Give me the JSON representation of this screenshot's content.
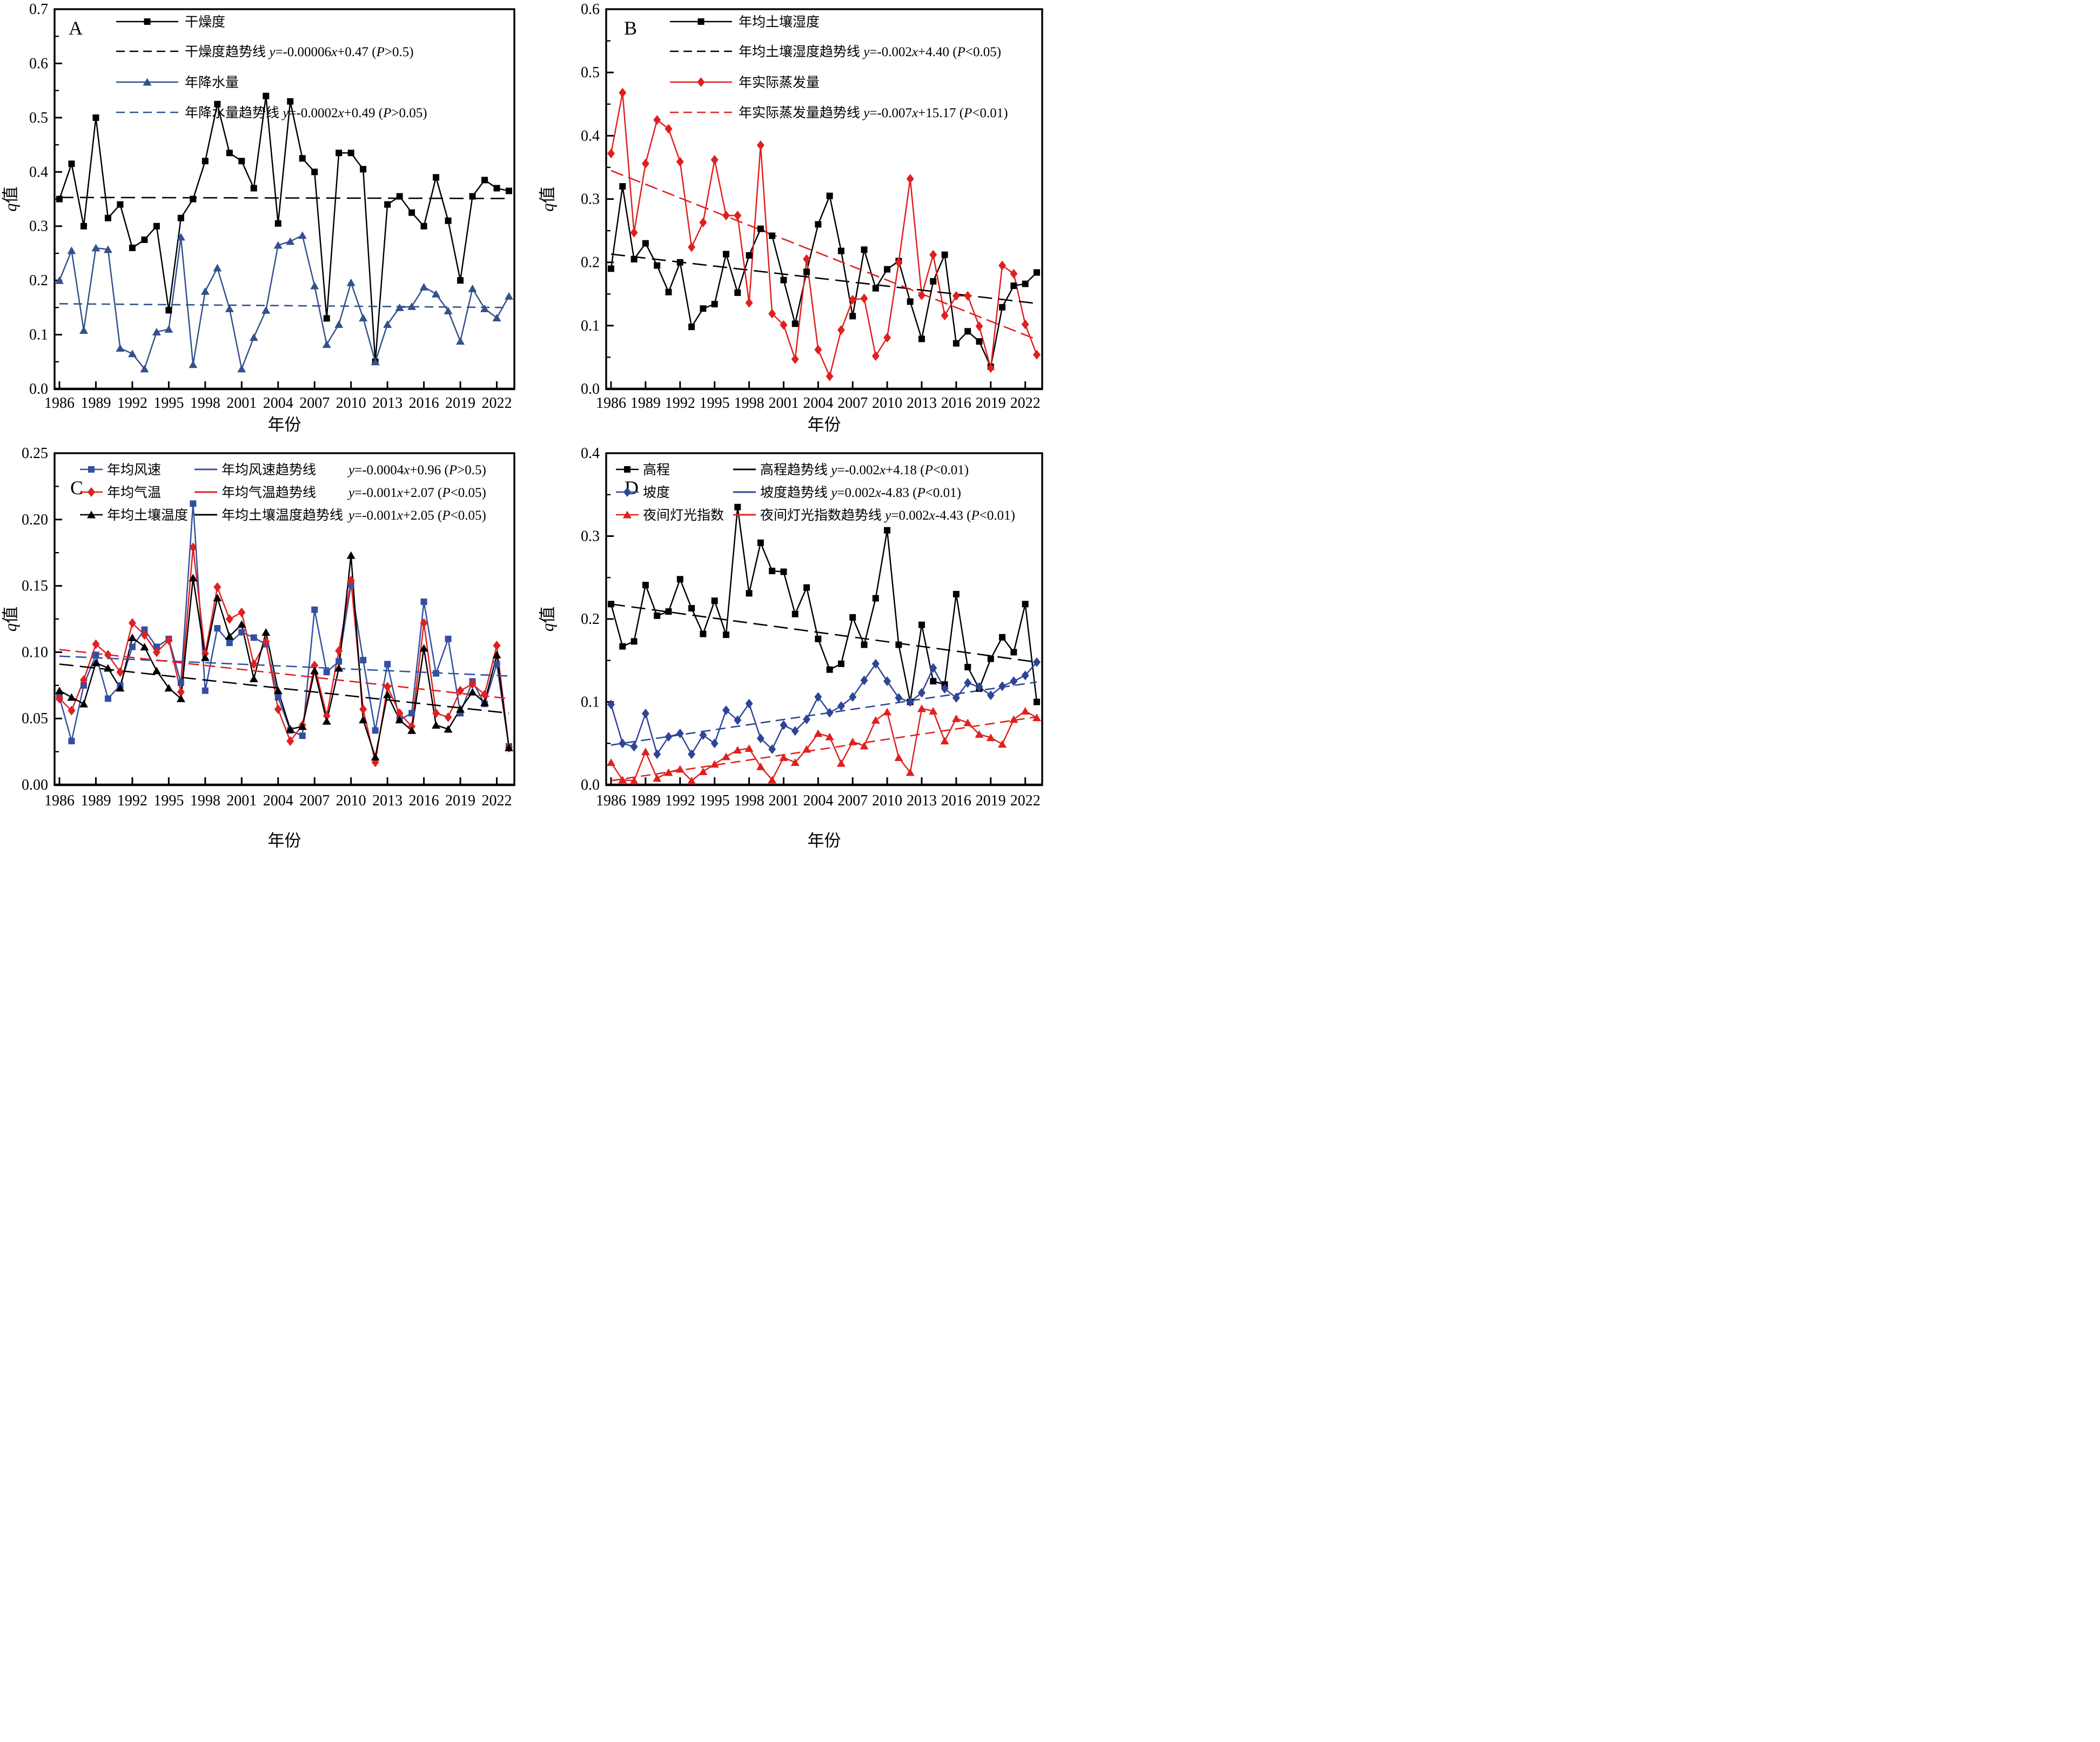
{
  "page": {
    "background": "#ffffff"
  },
  "chart_data": {
    "type": "line",
    "x_years": [
      1986,
      1987,
      1988,
      1989,
      1990,
      1991,
      1992,
      1993,
      1994,
      1995,
      1996,
      1997,
      1998,
      1999,
      2000,
      2001,
      2002,
      2003,
      2004,
      2005,
      2006,
      2007,
      2008,
      2009,
      2010,
      2011,
      2012,
      2013,
      2014,
      2015,
      2016,
      2017,
      2018,
      2019,
      2020,
      2021,
      2022,
      2023
    ],
    "xticks": [
      1986,
      1989,
      1992,
      1995,
      1998,
      2001,
      2004,
      2007,
      2010,
      2013,
      2016,
      2019,
      2022
    ],
    "xlabel": "年份",
    "ylabel_italic": "q",
    "ylabel_rest": "值",
    "grid": false,
    "panels": [
      {
        "letter": "A",
        "ylim": [
          0,
          0.7
        ],
        "ytick_step": 0.1,
        "y_decimals": 1,
        "series": [
          {
            "key": "dryness",
            "name": "干燥度",
            "color": "#000000",
            "marker": "square",
            "values": [
              0.35,
              0.415,
              0.3,
              0.5,
              0.315,
              0.34,
              0.26,
              0.275,
              0.3,
              0.145,
              0.315,
              0.35,
              0.42,
              0.525,
              0.435,
              0.42,
              0.37,
              0.54,
              0.305,
              0.53,
              0.425,
              0.4,
              0.13,
              0.435,
              0.435,
              0.405,
              0.05,
              0.34,
              0.355,
              0.325,
              0.3,
              0.39,
              0.31,
              0.2,
              0.355,
              0.385,
              0.37,
              0.365
            ]
          },
          {
            "key": "precipitation",
            "name": "年降水量",
            "color": "#33518d",
            "marker": "triangle",
            "values": [
              0.2,
              0.255,
              0.108,
              0.26,
              0.257,
              0.075,
              0.065,
              0.037,
              0.105,
              0.11,
              0.28,
              0.045,
              0.18,
              0.223,
              0.148,
              0.037,
              0.095,
              0.145,
              0.265,
              0.272,
              0.283,
              0.19,
              0.082,
              0.119,
              0.196,
              0.131,
              0.05,
              0.119,
              0.15,
              0.152,
              0.188,
              0.175,
              0.144,
              0.088,
              0.185,
              0.148,
              0.131,
              0.171
            ]
          }
        ],
        "trends": [
          {
            "key": "dryness-trend",
            "name": "干燥度趋势线",
            "eq": "y=-0.00006x+0.47 (P>0.5)",
            "color": "#000000",
            "start": 0.353,
            "end": 0.351,
            "dash": "26,12"
          },
          {
            "key": "precipitation-trend",
            "name": "年降水量趋势线",
            "eq": "y=-0.0002x+0.49 (P>0.05)",
            "color": "#33518d",
            "start": 0.157,
            "end": 0.15,
            "dash": "16,10"
          }
        ],
        "legend": {
          "type": "stack",
          "key_x": 215,
          "key_w": 115,
          "text_x": 342,
          "rows_y": [
            40,
            95,
            152,
            208
          ]
        }
      },
      {
        "letter": "B",
        "ylim": [
          0,
          0.6
        ],
        "ytick_step": 0.1,
        "y_decimals": 1,
        "series": [
          {
            "key": "soil-moisture",
            "name": "年均土壤湿度",
            "color": "#000000",
            "marker": "square",
            "values": [
              0.19,
              0.32,
              0.205,
              0.23,
              0.195,
              0.153,
              0.2,
              0.098,
              0.127,
              0.134,
              0.213,
              0.152,
              0.211,
              0.253,
              0.242,
              0.172,
              0.103,
              0.185,
              0.26,
              0.305,
              0.218,
              0.115,
              0.22,
              0.159,
              0.189,
              0.202,
              0.138,
              0.079,
              0.17,
              0.212,
              0.072,
              0.091,
              0.075,
              0.035,
              0.129,
              0.163,
              0.166,
              0.184
            ]
          },
          {
            "key": "evaporation",
            "name": "年实际蒸发量",
            "color": "#e02020",
            "marker": "diamond",
            "values": [
              0.372,
              0.468,
              0.247,
              0.356,
              0.425,
              0.411,
              0.359,
              0.224,
              0.263,
              0.362,
              0.274,
              0.274,
              0.136,
              0.385,
              0.119,
              0.101,
              0.047,
              0.205,
              0.062,
              0.02,
              0.093,
              0.141,
              0.143,
              0.052,
              0.081,
              0.2,
              0.332,
              0.148,
              0.212,
              0.116,
              0.147,
              0.147,
              0.099,
              0.033,
              0.195,
              0.182,
              0.102,
              0.054
            ]
          }
        ],
        "trends": [
          {
            "key": "soil-moisture-trend",
            "name": "年均土壤湿度趋势线",
            "eq": "y=-0.002x+4.40 (P<0.05)",
            "color": "#000000",
            "start": 0.213,
            "end": 0.135,
            "dash": "26,12"
          },
          {
            "key": "evaporation-trend",
            "name": "年实际蒸发量趋势线",
            "eq": "y=-0.007x+15.17 (P<0.01)",
            "color": "#e02020",
            "start": 0.345,
            "end": 0.078,
            "dash": "24,10"
          }
        ],
        "legend": {
          "type": "stack",
          "key_x": 268,
          "key_w": 115,
          "text_x": 395,
          "rows_y": [
            40,
            95,
            152,
            208
          ]
        }
      },
      {
        "letter": "C",
        "ylim": [
          0,
          0.25
        ],
        "ytick_step": 0.05,
        "y_decimals": 2,
        "series": [
          {
            "key": "wind-speed",
            "name": "年均风速",
            "color": "#3350a0",
            "marker": "square",
            "values": [
              0.066,
              0.033,
              0.075,
              0.098,
              0.065,
              0.075,
              0.104,
              0.117,
              0.104,
              0.11,
              0.077,
              0.212,
              0.071,
              0.118,
              0.107,
              0.115,
              0.111,
              0.106,
              0.066,
              0.041,
              0.037,
              0.132,
              0.085,
              0.093,
              0.151,
              0.094,
              0.041,
              0.091,
              0.049,
              0.054,
              0.138,
              0.084,
              0.11,
              0.054,
              0.078,
              0.061,
              0.091,
              0.029
            ]
          },
          {
            "key": "air-temperature",
            "name": "年均气温",
            "color": "#e02020",
            "marker": "diamond",
            "values": [
              0.065,
              0.056,
              0.079,
              0.106,
              0.098,
              0.085,
              0.122,
              0.113,
              0.1,
              0.109,
              0.07,
              0.179,
              0.099,
              0.149,
              0.125,
              0.13,
              0.091,
              0.108,
              0.057,
              0.033,
              0.045,
              0.09,
              0.052,
              0.101,
              0.154,
              0.057,
              0.017,
              0.074,
              0.054,
              0.044,
              0.122,
              0.054,
              0.051,
              0.071,
              0.076,
              0.068,
              0.105,
              0.028
            ]
          },
          {
            "key": "soil-temperature",
            "name": "年均土壤温度",
            "color": "#000000",
            "marker": "triangle",
            "values": [
              0.071,
              0.066,
              0.061,
              0.092,
              0.088,
              0.073,
              0.111,
              0.104,
              0.086,
              0.073,
              0.065,
              0.156,
              0.096,
              0.141,
              0.112,
              0.121,
              0.08,
              0.115,
              0.071,
              0.042,
              0.044,
              0.086,
              0.048,
              0.088,
              0.173,
              0.049,
              0.021,
              0.068,
              0.049,
              0.041,
              0.103,
              0.045,
              0.042,
              0.057,
              0.07,
              0.062,
              0.098,
              0.028
            ]
          }
        ],
        "trends": [
          {
            "key": "wind-speed-trend",
            "name": "年均风速趋势线",
            "eq": "y=-0.0004x+0.96 (P>0.5)",
            "color": "#3350a0",
            "start": 0.097,
            "end": 0.082,
            "dash": "20,10"
          },
          {
            "key": "air-temperature-trend",
            "name": "年均气温趋势线",
            "eq": "y=-0.001x+2.07 (P<0.05)",
            "color": "#e02020",
            "start": 0.102,
            "end": 0.065,
            "dash": "20,10"
          },
          {
            "key": "soil-temperature-trend",
            "name": "年均土壤温度趋势线",
            "eq": "y=-0.001x+2.05 (P<0.05)",
            "color": "#000000",
            "start": 0.091,
            "end": 0.054,
            "dash": "26,12"
          }
        ],
        "legend": {
          "type": "grid",
          "c1_key_x": 148,
          "c1_key_w": 42,
          "c1_text_x": 198,
          "c2_key_x": 360,
          "c2_key_w": 42,
          "c2_text_x": 410,
          "eq_x": 645,
          "rows_y": [
            62,
            104,
            146
          ]
        }
      },
      {
        "letter": "D",
        "ylim": [
          0,
          0.4
        ],
        "ytick_step": 0.1,
        "y_decimals": 1,
        "series": [
          {
            "key": "elevation",
            "name": "高程",
            "color": "#000000",
            "marker": "square",
            "values": [
              0.218,
              0.167,
              0.173,
              0.241,
              0.204,
              0.209,
              0.248,
              0.213,
              0.182,
              0.222,
              0.181,
              0.335,
              0.231,
              0.292,
              0.258,
              0.257,
              0.206,
              0.238,
              0.176,
              0.139,
              0.146,
              0.202,
              0.169,
              0.225,
              0.307,
              0.169,
              0.1,
              0.193,
              0.125,
              0.121,
              0.23,
              0.142,
              0.116,
              0.152,
              0.178,
              0.16,
              0.218,
              0.1
            ]
          },
          {
            "key": "slope",
            "name": "坡度",
            "color": "#2e4596",
            "marker": "diamond",
            "values": [
              0.097,
              0.05,
              0.046,
              0.086,
              0.037,
              0.058,
              0.062,
              0.037,
              0.06,
              0.05,
              0.09,
              0.078,
              0.098,
              0.056,
              0.043,
              0.072,
              0.065,
              0.079,
              0.106,
              0.087,
              0.095,
              0.106,
              0.126,
              0.146,
              0.125,
              0.105,
              0.1,
              0.111,
              0.141,
              0.116,
              0.105,
              0.123,
              0.118,
              0.108,
              0.119,
              0.125,
              0.132,
              0.148
            ]
          },
          {
            "key": "night-light",
            "name": "夜间灯光指数",
            "color": "#e02020",
            "marker": "triangle",
            "values": [
              0.027,
              0.006,
              0.005,
              0.04,
              0.008,
              0.015,
              0.019,
              0.005,
              0.016,
              0.025,
              0.034,
              0.042,
              0.044,
              0.022,
              0.006,
              0.033,
              0.027,
              0.043,
              0.062,
              0.058,
              0.026,
              0.052,
              0.047,
              0.078,
              0.088,
              0.033,
              0.015,
              0.092,
              0.089,
              0.053,
              0.08,
              0.075,
              0.061,
              0.057,
              0.049,
              0.079,
              0.089,
              0.081
            ]
          }
        ],
        "trends": [
          {
            "key": "elevation-trend",
            "name": "高程趋势线",
            "eq": "y=-0.002x+4.18 (P<0.01)",
            "color": "#000000",
            "start": 0.218,
            "end": 0.148,
            "dash": "26,12"
          },
          {
            "key": "slope-trend",
            "name": "坡度趋势线",
            "eq": "y=0.002x-4.83 (P<0.01)",
            "color": "#2e4596",
            "start": 0.048,
            "end": 0.124,
            "dash": "18,10"
          },
          {
            "key": "night-light-trend",
            "name": "夜间灯光指数趋势线",
            "eq": "y=0.002x-4.43 (P<0.01)",
            "color": "#e02020",
            "start": 0.005,
            "end": 0.082,
            "dash": "18,10"
          }
        ],
        "legend": {
          "type": "grid",
          "c1_key_x": 168,
          "c1_key_w": 42,
          "c1_text_x": 218,
          "c2_key_x": 385,
          "c2_key_w": 42,
          "c2_text_x": 435,
          "eq_x": -1,
          "rows_y": [
            62,
            104,
            146
          ]
        }
      }
    ]
  }
}
